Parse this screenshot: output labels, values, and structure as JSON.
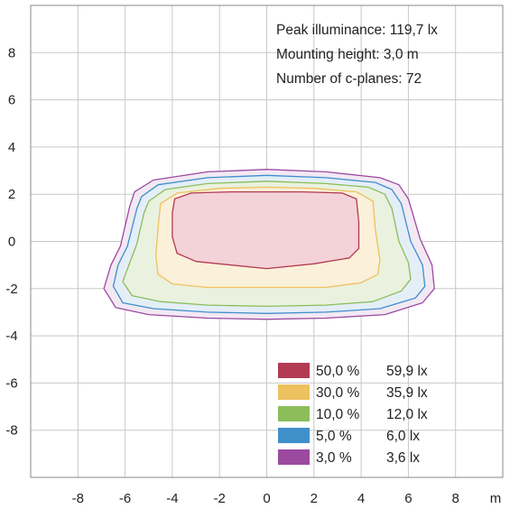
{
  "info": {
    "peak": "Peak illuminance: 119,7 lx",
    "mounting": "Mounting height: 3,0 m",
    "cplanes": "Number of c-planes: 72"
  },
  "chart_data": {
    "type": "contour",
    "x_unit_label": "m",
    "xlim": [
      -10,
      10
    ],
    "ylim": [
      -10,
      10
    ],
    "x_ticks": [
      "-8",
      "-6",
      "-4",
      "-2",
      "0",
      "2",
      "4",
      "6",
      "8"
    ],
    "y_ticks": [
      "8",
      "6",
      "4",
      "2",
      "0",
      "-2",
      "-4",
      "-6",
      "-8"
    ],
    "grid": true,
    "legend_position": "bottom-right",
    "series": [
      {
        "percent": "3,0 %",
        "lux": "3,6 lx",
        "color": "#9c4aa0",
        "fill": "#f2e9f3",
        "points": [
          [
            -5.6,
            2.1
          ],
          [
            -4.8,
            2.6
          ],
          [
            -2.5,
            2.95
          ],
          [
            0,
            3.05
          ],
          [
            2.5,
            2.95
          ],
          [
            4.8,
            2.7
          ],
          [
            5.6,
            2.4
          ],
          [
            6.0,
            1.8
          ],
          [
            6.5,
            0.1
          ],
          [
            7.0,
            -1.0
          ],
          [
            7.1,
            -2.0
          ],
          [
            6.6,
            -2.6
          ],
          [
            5.0,
            -3.1
          ],
          [
            2.5,
            -3.25
          ],
          [
            0,
            -3.3
          ],
          [
            -2.5,
            -3.25
          ],
          [
            -5.0,
            -3.1
          ],
          [
            -6.4,
            -2.8
          ],
          [
            -6.9,
            -2.0
          ],
          [
            -6.6,
            -1.0
          ],
          [
            -6.2,
            -0.2
          ],
          [
            -5.8,
            1.5
          ]
        ]
      },
      {
        "percent": "5,0 %",
        "lux": "6,0 lx",
        "color": "#3f8fcb",
        "fill": "#e4eef7",
        "points": [
          [
            -5.3,
            1.9
          ],
          [
            -4.6,
            2.4
          ],
          [
            -2.5,
            2.7
          ],
          [
            0,
            2.8
          ],
          [
            2.5,
            2.7
          ],
          [
            4.6,
            2.5
          ],
          [
            5.3,
            2.2
          ],
          [
            5.7,
            1.6
          ],
          [
            6.1,
            0.0
          ],
          [
            6.6,
            -1.0
          ],
          [
            6.7,
            -1.9
          ],
          [
            6.3,
            -2.4
          ],
          [
            4.8,
            -2.85
          ],
          [
            2.5,
            -3.0
          ],
          [
            0,
            -3.05
          ],
          [
            -2.5,
            -3.0
          ],
          [
            -4.8,
            -2.85
          ],
          [
            -6.1,
            -2.6
          ],
          [
            -6.5,
            -1.9
          ],
          [
            -6.3,
            -1.0
          ],
          [
            -5.9,
            -0.2
          ],
          [
            -5.5,
            1.4
          ]
        ]
      },
      {
        "percent": "10,0 %",
        "lux": "12,0 lx",
        "color": "#8bbd5b",
        "fill": "#eaf2df",
        "points": [
          [
            -5.0,
            1.7
          ],
          [
            -4.3,
            2.2
          ],
          [
            -2.5,
            2.45
          ],
          [
            0,
            2.55
          ],
          [
            2.5,
            2.45
          ],
          [
            4.3,
            2.3
          ],
          [
            5.0,
            2.0
          ],
          [
            5.3,
            1.4
          ],
          [
            5.6,
            0.0
          ],
          [
            6.0,
            -0.9
          ],
          [
            6.1,
            -1.6
          ],
          [
            5.7,
            -2.1
          ],
          [
            4.5,
            -2.55
          ],
          [
            2.5,
            -2.7
          ],
          [
            0,
            -2.75
          ],
          [
            -2.5,
            -2.7
          ],
          [
            -4.5,
            -2.55
          ],
          [
            -5.7,
            -2.3
          ],
          [
            -6.1,
            -1.7
          ],
          [
            -5.8,
            -0.9
          ],
          [
            -5.5,
            -0.1
          ],
          [
            -5.2,
            1.2
          ]
        ]
      },
      {
        "percent": "30,0 %",
        "lux": "35,9 lx",
        "color": "#eec15f",
        "fill": "#fbf0d9",
        "points": [
          [
            -4.5,
            1.6
          ],
          [
            -3.8,
            2.05
          ],
          [
            -2.0,
            2.25
          ],
          [
            0,
            2.3
          ],
          [
            2.0,
            2.25
          ],
          [
            3.8,
            2.1
          ],
          [
            4.5,
            1.7
          ],
          [
            4.6,
            0.5
          ],
          [
            4.8,
            -0.8
          ],
          [
            4.7,
            -1.4
          ],
          [
            4.0,
            -1.75
          ],
          [
            2.5,
            -1.95
          ],
          [
            0,
            -1.95
          ],
          [
            -2.5,
            -1.95
          ],
          [
            -4.0,
            -1.8
          ],
          [
            -4.6,
            -1.4
          ],
          [
            -4.7,
            -0.6
          ],
          [
            -4.6,
            0.6
          ]
        ]
      },
      {
        "percent": "50,0 %",
        "lux": "59,9 lx",
        "color": "#b23a52",
        "fill": "#f3d2d8",
        "points": [
          [
            -3.9,
            1.8
          ],
          [
            -3.2,
            2.05
          ],
          [
            -1.5,
            2.1
          ],
          [
            0,
            2.1
          ],
          [
            1.5,
            2.1
          ],
          [
            3.2,
            2.05
          ],
          [
            3.8,
            1.8
          ],
          [
            3.9,
            0.8
          ],
          [
            3.9,
            -0.3
          ],
          [
            3.5,
            -0.7
          ],
          [
            2.0,
            -0.95
          ],
          [
            0,
            -1.15
          ],
          [
            -1.5,
            -1.0
          ],
          [
            -3.0,
            -0.85
          ],
          [
            -3.8,
            -0.5
          ],
          [
            -4.0,
            0.2
          ],
          [
            -4.0,
            1.2
          ]
        ]
      }
    ]
  }
}
